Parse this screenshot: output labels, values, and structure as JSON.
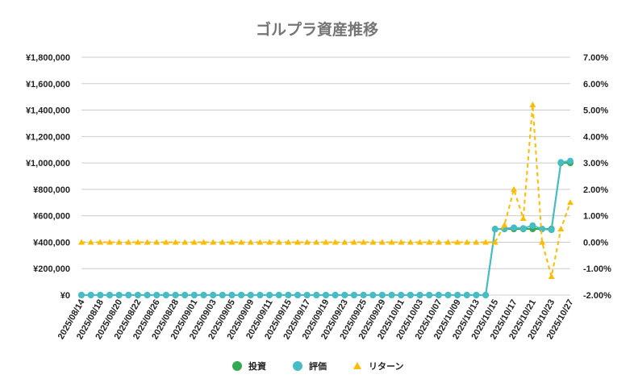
{
  "chart_data": {
    "type": "line",
    "title": "ゴルプラ資産推移",
    "xlabel": "",
    "ylabel": "",
    "ylabel_right": "",
    "legend_position": "bottom",
    "grid": true,
    "ylim": [
      0,
      1800000
    ],
    "y2lim": [
      -2.0,
      7.0
    ],
    "y_ticks": [
      "¥0",
      "¥200,000",
      "¥400,000",
      "¥600,000",
      "¥800,000",
      "¥1,000,000",
      "¥1,200,000",
      "¥1,400,000",
      "¥1,600,000",
      "¥1,800,000"
    ],
    "y2_ticks": [
      "-2.00%",
      "-1.00%",
      "0.00%",
      "1.00%",
      "2.00%",
      "3.00%",
      "4.00%",
      "5.00%",
      "6.00%",
      "7.00%"
    ],
    "x": [
      "2025/08/14",
      "2025/08/15",
      "2025/08/18",
      "2025/08/19",
      "2025/08/20",
      "2025/08/21",
      "2025/08/22",
      "2025/08/25",
      "2025/08/26",
      "2025/08/27",
      "2025/08/28",
      "2025/08/29",
      "2025/09/01",
      "2025/09/02",
      "2025/09/03",
      "2025/09/04",
      "2025/09/05",
      "2025/09/08",
      "2025/09/09",
      "2025/09/10",
      "2025/09/11",
      "2025/09/12",
      "2025/09/15",
      "2025/09/16",
      "2025/09/17",
      "2025/09/18",
      "2025/09/19",
      "2025/09/22",
      "2025/09/23",
      "2025/09/24",
      "2025/09/25",
      "2025/09/26",
      "2025/09/29",
      "2025/09/30",
      "2025/10/01",
      "2025/10/02",
      "2025/10/03",
      "2025/10/06",
      "2025/10/07",
      "2025/10/08",
      "2025/10/09",
      "2025/10/10",
      "2025/10/13",
      "2025/10/14",
      "2025/10/15",
      "2025/10/16",
      "2025/10/17",
      "2025/10/20",
      "2025/10/21",
      "2025/10/22",
      "2025/10/23",
      "2025/10/24",
      "2025/10/27"
    ],
    "x_tick_labels": [
      "2025/08/14",
      "2025/08/18",
      "2025/08/20",
      "2025/08/22",
      "2025/08/26",
      "2025/08/28",
      "2025/09/01",
      "2025/09/03",
      "2025/09/05",
      "2025/09/09",
      "2025/09/11",
      "2025/09/15",
      "2025/09/17",
      "2025/09/19",
      "2025/09/23",
      "2025/09/25",
      "2025/09/29",
      "2025/10/01",
      "2025/10/03",
      "2025/10/07",
      "2025/10/09",
      "2025/10/13",
      "2025/10/15",
      "2025/10/17",
      "2025/10/21",
      "2025/10/23",
      "2025/10/27"
    ],
    "series": [
      {
        "name": "投資",
        "axis": "left",
        "color": "#34a853",
        "values": [
          0,
          0,
          0,
          0,
          0,
          0,
          0,
          0,
          0,
          0,
          0,
          0,
          0,
          0,
          0,
          0,
          0,
          0,
          0,
          0,
          0,
          0,
          0,
          0,
          0,
          0,
          0,
          0,
          0,
          0,
          0,
          0,
          0,
          0,
          0,
          0,
          0,
          0,
          0,
          0,
          0,
          0,
          0,
          0,
          500000,
          500000,
          500000,
          500000,
          500000,
          500000,
          500000,
          1000000,
          1000000
        ]
      },
      {
        "name": "評価",
        "axis": "left",
        "color": "#46bdc6",
        "values": [
          0,
          0,
          0,
          0,
          0,
          0,
          0,
          0,
          0,
          0,
          0,
          0,
          0,
          0,
          0,
          0,
          0,
          0,
          0,
          0,
          0,
          0,
          0,
          0,
          0,
          0,
          0,
          0,
          0,
          0,
          0,
          0,
          0,
          0,
          0,
          0,
          0,
          0,
          0,
          0,
          0,
          0,
          0,
          0,
          498000,
          503000,
          510000,
          505000,
          526000,
          500000,
          493000,
          1005000,
          1015000
        ]
      },
      {
        "name": "リターン",
        "axis": "right",
        "color": "#fbbc04",
        "dashed": true,
        "values": [
          0,
          0,
          0,
          0,
          0,
          0,
          0,
          0,
          0,
          0,
          0,
          0,
          0,
          0,
          0,
          0,
          0,
          0,
          0,
          0,
          0,
          0,
          0,
          0,
          0,
          0,
          0,
          0,
          0,
          0,
          0,
          0,
          0,
          0,
          0,
          0,
          0,
          0,
          0,
          0,
          0,
          0,
          0,
          0,
          0.0,
          0.65,
          2.0,
          0.9,
          5.2,
          0.0,
          -1.3,
          0.5,
          1.5
        ]
      }
    ]
  }
}
